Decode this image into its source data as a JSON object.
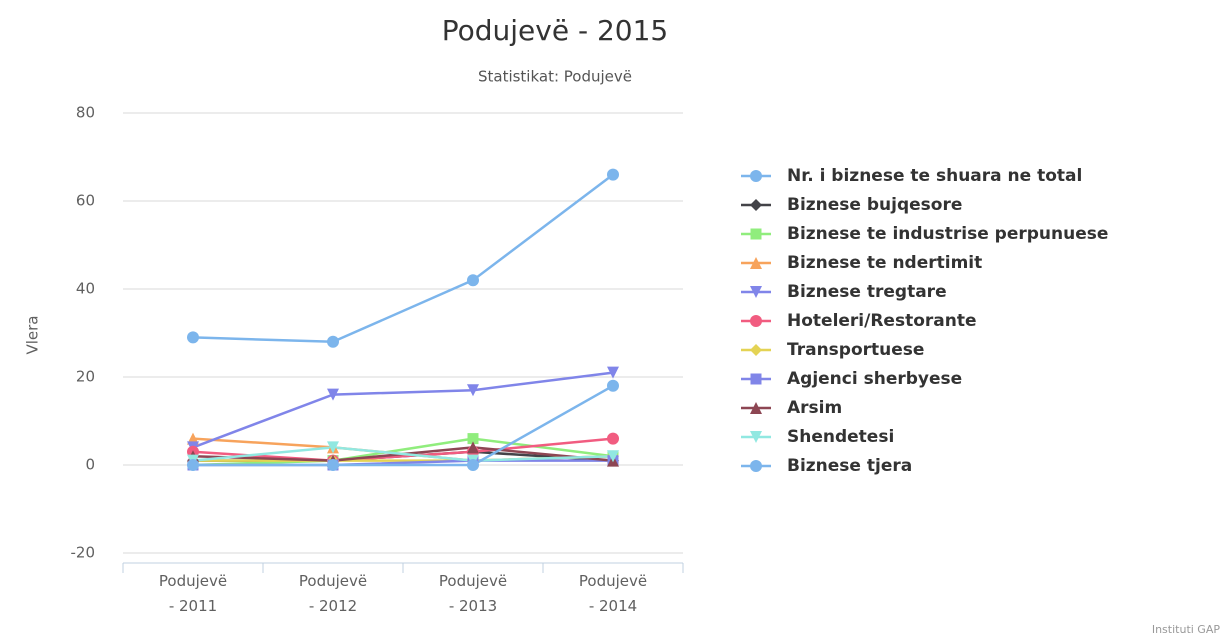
{
  "chart_data": {
    "type": "line",
    "title": "Podujevë - 2015",
    "subtitle": "Statistikat: Podujevë",
    "y_label": "Vlera",
    "credits": "Instituti GAP",
    "categories": [
      "Podujevë - 2011",
      "Podujevë - 2012",
      "Podujevë - 2013",
      "Podujevë - 2014"
    ],
    "ylim": [
      -20,
      80
    ],
    "yticks": [
      -20,
      0,
      20,
      40,
      60,
      80
    ],
    "grid": true,
    "legend": "right",
    "series": [
      {
        "name": "Nr. i biznese te shuara ne total",
        "color": "#7cb5ec",
        "marker": "circle",
        "values": [
          29,
          28,
          42,
          66
        ]
      },
      {
        "name": "Biznese bujqesore",
        "color": "#434348",
        "marker": "diamond",
        "values": [
          1,
          1,
          3,
          1
        ]
      },
      {
        "name": "Biznese te industrise perpunuese",
        "color": "#90ed7d",
        "marker": "square",
        "values": [
          0,
          1,
          6,
          2
        ]
      },
      {
        "name": "Biznese te ndertimit",
        "color": "#f7a35c",
        "marker": "triangle",
        "values": [
          6,
          4,
          1,
          2
        ]
      },
      {
        "name": "Biznese tregtare",
        "color": "#8085e9",
        "marker": "triangle-down",
        "values": [
          4,
          16,
          17,
          21
        ]
      },
      {
        "name": "Hoteleri/Restorante",
        "color": "#f15c80",
        "marker": "circle",
        "values": [
          3,
          1,
          3,
          6
        ]
      },
      {
        "name": "Transportuese",
        "color": "#e4d354",
        "marker": "diamond",
        "values": [
          1,
          1,
          1,
          2
        ]
      },
      {
        "name": "Agjenci sherbyese",
        "color": "#8085e8",
        "marker": "square",
        "values": [
          0,
          0,
          1,
          1
        ]
      },
      {
        "name": "Arsim",
        "color": "#8d4653",
        "marker": "triangle",
        "values": [
          2,
          1,
          4,
          1
        ]
      },
      {
        "name": "Shendetesi",
        "color": "#91e8e1",
        "marker": "triangle-down",
        "values": [
          1,
          4,
          1,
          2
        ]
      },
      {
        "name": "Biznese tjera",
        "color": "#7cb5ec",
        "marker": "circle",
        "values": [
          0,
          0,
          0,
          18
        ]
      }
    ]
  }
}
